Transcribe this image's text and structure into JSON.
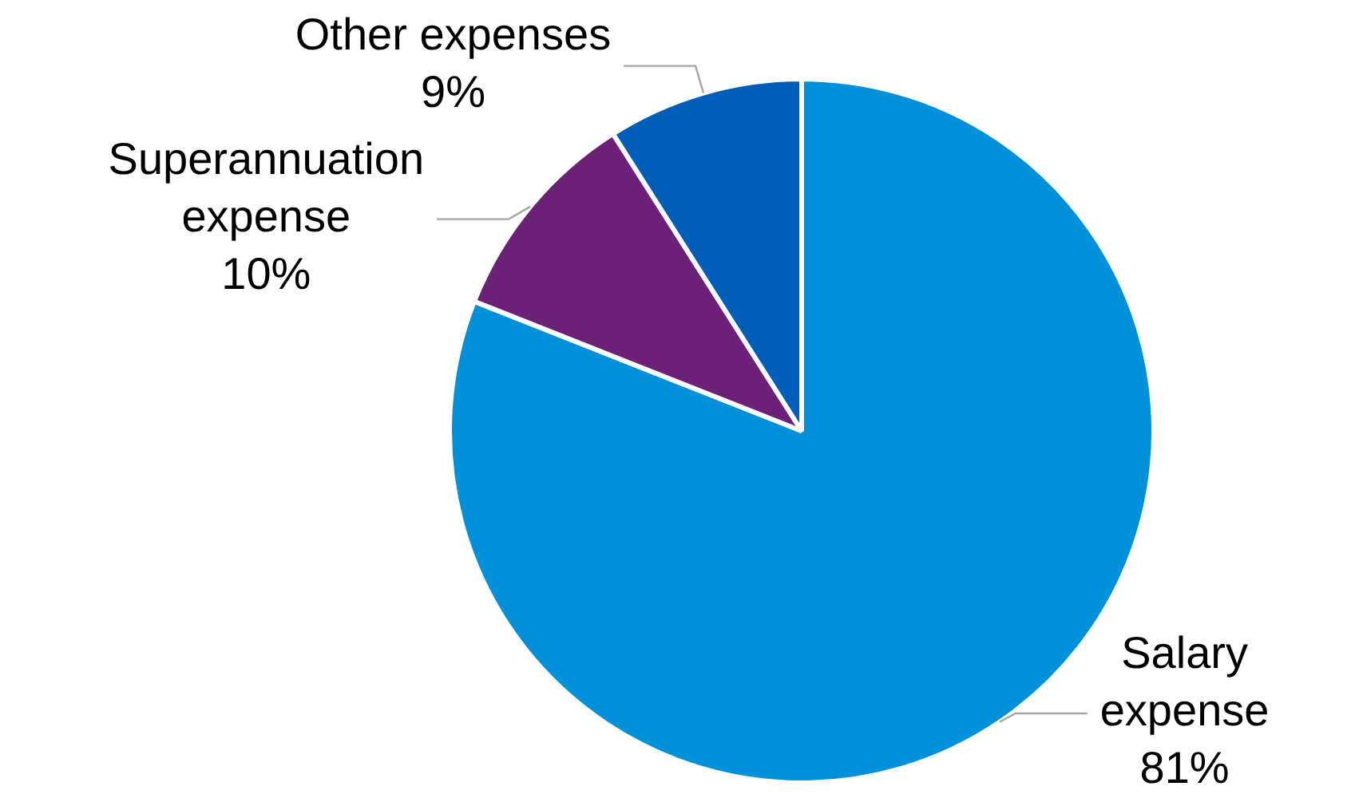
{
  "chart_data": {
    "type": "pie",
    "categories": [
      "Salary expense",
      "Superannuation expense",
      "Other expenses"
    ],
    "values": [
      81,
      10,
      9
    ],
    "colors": [
      "#0091da",
      "#6d2077",
      "#005eb8"
    ],
    "value_labels": [
      "81%",
      "10%",
      "9%"
    ],
    "legend": false
  }
}
